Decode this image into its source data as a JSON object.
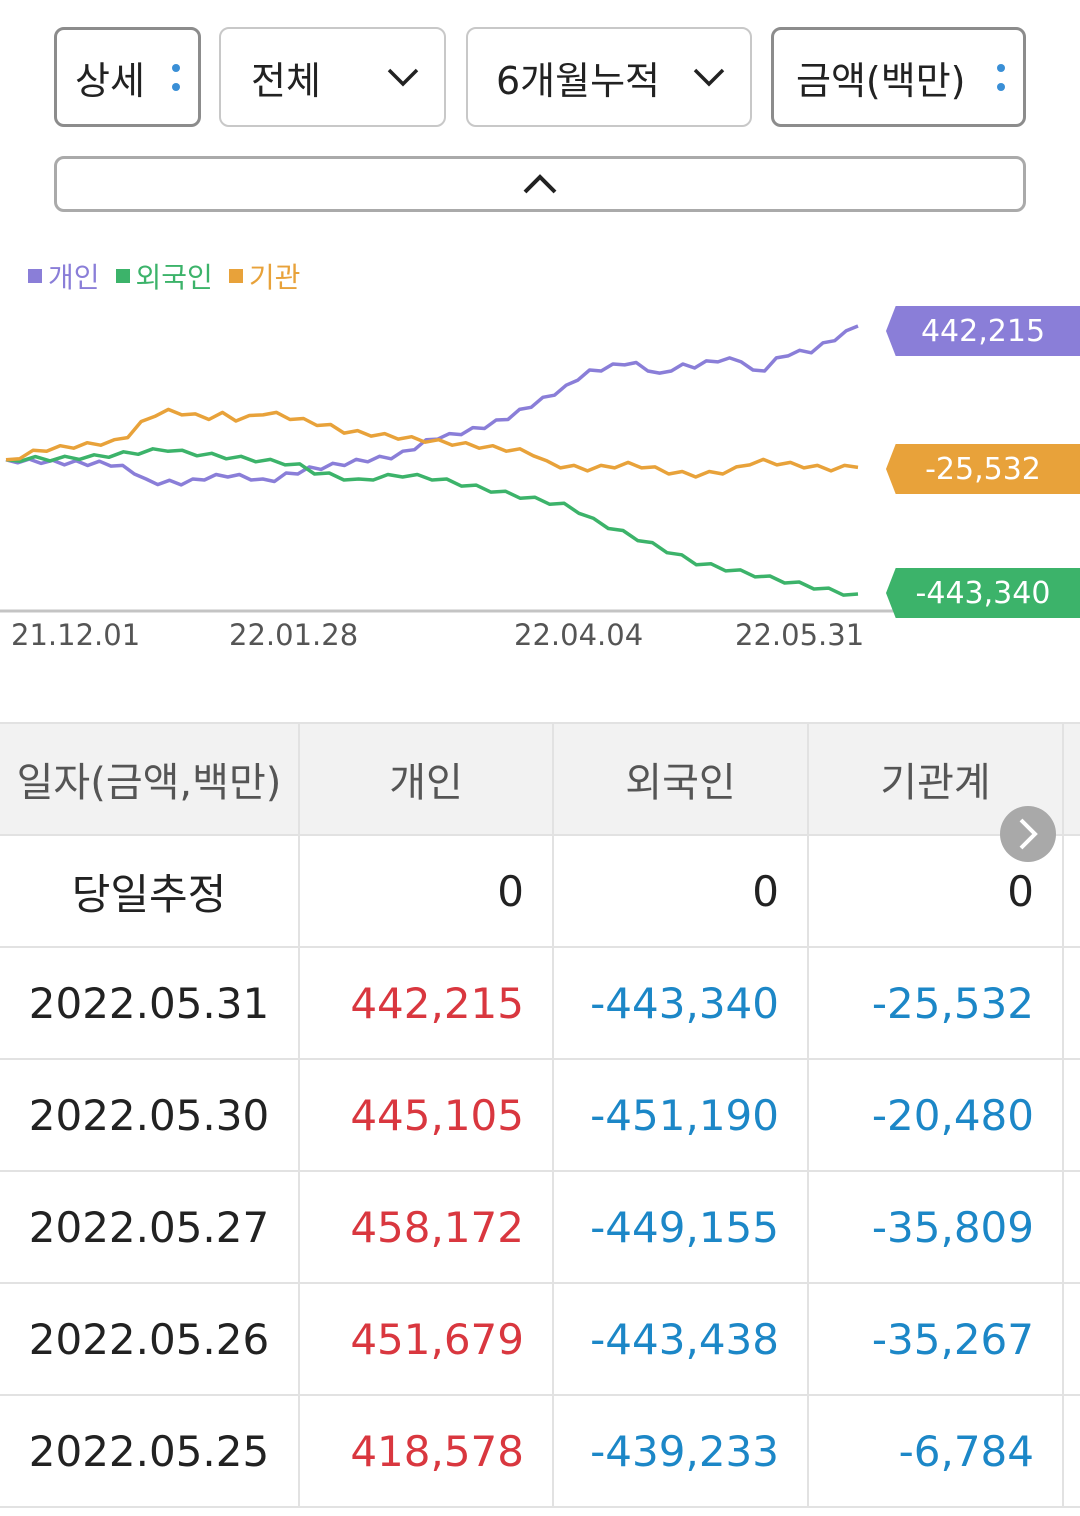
{
  "filters": {
    "view": "상세",
    "scope": "전체",
    "period": "6개월누적",
    "unit": "금액(백만)"
  },
  "legend": [
    {
      "label": "개인",
      "color": "#8a7ed8"
    },
    {
      "label": "외국인",
      "color": "#3cb36a"
    },
    {
      "label": "기관",
      "color": "#e8a23a"
    }
  ],
  "chart_data": {
    "type": "line",
    "x_ticks": [
      "21.12.01",
      "22.01.28",
      "22.04.04",
      "22.05.31"
    ],
    "series": [
      {
        "name": "개인",
        "color": "#8a7ed8",
        "last_label": "442,215",
        "values": [
          0,
          -3,
          -4,
          -5,
          -8,
          -10,
          -9,
          -12,
          -11,
          -14,
          -25,
          -40,
          -70,
          -75,
          -74,
          -76,
          -70,
          -60,
          -55,
          -50,
          -55,
          -60,
          -70,
          -65,
          -50,
          -40,
          -30,
          -25,
          -18,
          -12,
          -5,
          0,
          5,
          10,
          22,
          40,
          60,
          75,
          80,
          90,
          100,
          110,
          125,
          140,
          160,
          180,
          200,
          220,
          240,
          270,
          290,
          300,
          310,
          320,
          315,
          300,
          280,
          300,
          310,
          310,
          320,
          330,
          330,
          330,
          290,
          300,
          330,
          350,
          355,
          360,
          380,
          400,
          420,
          442
        ]
      },
      {
        "name": "외국인",
        "color": "#3cb36a",
        "values": [
          0,
          2,
          4,
          3,
          5,
          8,
          10,
          15,
          20,
          25,
          30,
          35,
          25,
          20,
          15,
          10,
          5,
          0,
          -5,
          -10,
          -20,
          -40,
          -50,
          -60,
          -70,
          -60,
          -55,
          -50,
          -55,
          -60,
          -70,
          -80,
          -90,
          -100,
          -110,
          -120,
          -130,
          -140,
          -150,
          -170,
          -200,
          -220,
          -240,
          -260,
          -280,
          -300,
          -320,
          -340,
          -350,
          -360,
          -370,
          -380,
          -390,
          -400,
          -410,
          -420,
          -430,
          -440,
          -443
        ]
      },
      {
        "name": "기관",
        "color": "#e8a23a",
        "values": [
          0,
          10,
          25,
          35,
          40,
          45,
          50,
          55,
          60,
          80,
          120,
          150,
          160,
          155,
          145,
          140,
          150,
          135,
          140,
          155,
          150,
          140,
          130,
          120,
          110,
          95,
          90,
          85,
          80,
          75,
          70,
          65,
          60,
          55,
          50,
          45,
          40,
          35,
          30,
          20,
          -10,
          -20,
          -25,
          -30,
          -25,
          -20,
          -15,
          -20,
          -30,
          -40,
          -45,
          -50,
          -45,
          -40,
          -30,
          -10,
          -5,
          -10,
          -15,
          -20,
          -25,
          -30,
          -25,
          -25
        ]
      }
    ]
  },
  "series_labels": {
    "individual": "442,215",
    "institution": "-25,532",
    "foreign": "-443,340"
  },
  "table": {
    "headers": [
      "일자(금액,백만)",
      "개인",
      "외국인",
      "기관계"
    ],
    "rows": [
      {
        "date": "당일추정",
        "ind": "0",
        "frn": "0",
        "inst": "0",
        "style": "zero"
      },
      {
        "date": "2022.05.31",
        "ind": "442,215",
        "frn": "-443,340",
        "inst": "-25,532"
      },
      {
        "date": "2022.05.30",
        "ind": "445,105",
        "frn": "-451,190",
        "inst": "-20,480"
      },
      {
        "date": "2022.05.27",
        "ind": "458,172",
        "frn": "-449,155",
        "inst": "-35,809"
      },
      {
        "date": "2022.05.26",
        "ind": "451,679",
        "frn": "-443,438",
        "inst": "-35,267"
      },
      {
        "date": "2022.05.25",
        "ind": "418,578",
        "frn": "-439,233",
        "inst": "-6,784"
      }
    ]
  }
}
